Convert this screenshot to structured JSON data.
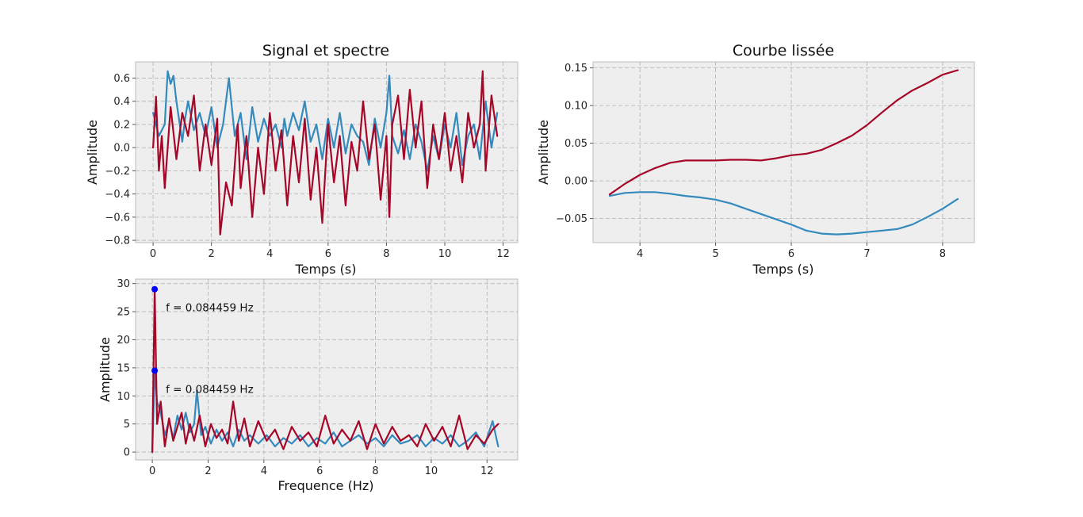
{
  "chart_data": [
    {
      "type": "line",
      "title": "Signal et spectre",
      "xlabel": "Temps (s)",
      "ylabel": "Amplitude",
      "xlim": [
        -0.6,
        12.5
      ],
      "ylim": [
        -0.82,
        0.74
      ],
      "xticks": [
        "0",
        "2",
        "4",
        "6",
        "8",
        "10",
        "12"
      ],
      "yticks": [
        "−0.8",
        "−0.6",
        "−0.4",
        "−0.2",
        "0.0",
        "0.2",
        "0.4",
        "0.6"
      ],
      "grid": true,
      "colors": [
        "#348abd",
        "#a60628"
      ],
      "series": [
        {
          "values_x": [
            0.0,
            0.2,
            0.4,
            0.5,
            0.6,
            0.7,
            0.8,
            1.0,
            1.1,
            1.2,
            1.4,
            1.6,
            1.8,
            2.0,
            2.2,
            2.4,
            2.6,
            2.8,
            3.0,
            3.2,
            3.4,
            3.6,
            3.8,
            4.0,
            4.2,
            4.4,
            4.5,
            4.6,
            4.8,
            5.0,
            5.2,
            5.4,
            5.6,
            5.8,
            6.0,
            6.2,
            6.4,
            6.6,
            6.8,
            7.0,
            7.2,
            7.4,
            7.6,
            7.8,
            8.0,
            8.1,
            8.2,
            8.4,
            8.6,
            8.8,
            9.0,
            9.2,
            9.4,
            9.6,
            9.8,
            10.0,
            10.2,
            10.4,
            10.6,
            10.8,
            11.0,
            11.2,
            11.4,
            11.6,
            11.8
          ],
          "values_y": [
            0.3,
            0.1,
            0.2,
            0.66,
            0.55,
            0.62,
            0.4,
            0.05,
            0.25,
            0.4,
            0.15,
            0.3,
            0.1,
            0.35,
            0.0,
            0.2,
            0.6,
            0.1,
            0.3,
            -0.1,
            0.35,
            0.05,
            0.25,
            0.1,
            0.2,
            0.0,
            0.25,
            0.1,
            0.3,
            0.15,
            0.4,
            0.05,
            0.2,
            -0.1,
            0.25,
            0.0,
            0.3,
            -0.05,
            0.2,
            0.1,
            0.05,
            -0.15,
            0.25,
            0.0,
            0.3,
            0.62,
            0.1,
            -0.05,
            0.15,
            -0.1,
            0.2,
            0.05,
            -0.2,
            0.1,
            -0.1,
            0.2,
            0.0,
            0.3,
            -0.15,
            0.1,
            0.2,
            -0.1,
            0.4,
            0.0,
            0.3
          ]
        },
        {
          "values_x": [
            0.0,
            0.1,
            0.2,
            0.3,
            0.4,
            0.6,
            0.8,
            1.0,
            1.2,
            1.4,
            1.6,
            1.8,
            2.0,
            2.2,
            2.3,
            2.5,
            2.7,
            2.9,
            3.0,
            3.2,
            3.4,
            3.6,
            3.8,
            4.0,
            4.2,
            4.4,
            4.6,
            4.8,
            5.0,
            5.2,
            5.4,
            5.6,
            5.8,
            6.0,
            6.2,
            6.4,
            6.6,
            6.8,
            7.0,
            7.2,
            7.4,
            7.6,
            7.8,
            8.0,
            8.1,
            8.2,
            8.4,
            8.6,
            8.8,
            9.0,
            9.2,
            9.4,
            9.6,
            9.8,
            10.0,
            10.2,
            10.4,
            10.6,
            10.8,
            11.0,
            11.2,
            11.3,
            11.4,
            11.6,
            11.8
          ],
          "values_y": [
            0.0,
            0.44,
            -0.2,
            0.1,
            -0.35,
            0.35,
            -0.1,
            0.3,
            0.1,
            0.45,
            -0.2,
            0.2,
            -0.15,
            0.25,
            -0.75,
            -0.3,
            -0.5,
            0.2,
            -0.35,
            0.1,
            -0.6,
            0.0,
            -0.4,
            0.3,
            -0.2,
            0.15,
            -0.5,
            0.1,
            -0.3,
            0.25,
            -0.45,
            0.0,
            -0.65,
            0.2,
            -0.3,
            0.1,
            -0.5,
            0.05,
            -0.2,
            0.4,
            -0.1,
            0.2,
            -0.45,
            0.1,
            -0.6,
            0.2,
            0.45,
            -0.1,
            0.5,
            0.0,
            0.4,
            -0.35,
            0.2,
            -0.1,
            0.3,
            -0.2,
            0.1,
            -0.3,
            0.3,
            0.0,
            0.2,
            0.66,
            -0.2,
            0.45,
            0.1
          ]
        }
      ]
    },
    {
      "type": "line",
      "title": "Courbe lissée",
      "xlabel": "Temps (s)",
      "ylabel": "Amplitude",
      "xlim": [
        3.38,
        8.42
      ],
      "ylim": [
        -0.082,
        0.158
      ],
      "xticks": [
        "4",
        "5",
        "6",
        "7",
        "8"
      ],
      "yticks": [
        "−0.05",
        "0.00",
        "0.05",
        "0.10",
        "0.15"
      ],
      "grid": true,
      "colors": [
        "#348abd",
        "#a60628"
      ],
      "series": [
        {
          "values_x": [
            3.6,
            3.8,
            4.0,
            4.2,
            4.4,
            4.6,
            4.8,
            5.0,
            5.2,
            5.4,
            5.6,
            5.8,
            6.0,
            6.2,
            6.4,
            6.6,
            6.8,
            7.0,
            7.2,
            7.4,
            7.6,
            7.8,
            8.0,
            8.2
          ],
          "values_y": [
            -0.02,
            -0.016,
            -0.015,
            -0.015,
            -0.017,
            -0.02,
            -0.022,
            -0.025,
            -0.03,
            -0.037,
            -0.044,
            -0.051,
            -0.058,
            -0.066,
            -0.07,
            -0.071,
            -0.07,
            -0.068,
            -0.066,
            -0.064,
            -0.058,
            -0.048,
            -0.037,
            -0.024
          ]
        },
        {
          "values_x": [
            3.6,
            3.8,
            4.0,
            4.2,
            4.4,
            4.6,
            4.8,
            5.0,
            5.2,
            5.4,
            5.6,
            5.8,
            6.0,
            6.2,
            6.4,
            6.6,
            6.8,
            7.0,
            7.2,
            7.4,
            7.6,
            7.8,
            8.0,
            8.2
          ],
          "values_y": [
            -0.018,
            -0.004,
            0.008,
            0.017,
            0.024,
            0.027,
            0.027,
            0.027,
            0.028,
            0.028,
            0.027,
            0.03,
            0.034,
            0.036,
            0.041,
            0.05,
            0.06,
            0.074,
            0.091,
            0.107,
            0.12,
            0.13,
            0.141,
            0.147
          ]
        }
      ]
    },
    {
      "type": "line",
      "xlabel": "Frequence (Hz)",
      "ylabel": "Amplitude",
      "xlim": [
        -0.6,
        13.1
      ],
      "ylim": [
        -1.4,
        30.8
      ],
      "xticks": [
        "0",
        "2",
        "4",
        "6",
        "8",
        "10",
        "12"
      ],
      "yticks": [
        "0",
        "5",
        "10",
        "15",
        "20",
        "25",
        "30"
      ],
      "grid": true,
      "colors": [
        "#348abd",
        "#a60628"
      ],
      "peak_marker_color": "#0000ff",
      "peaks": [
        {
          "x": 0.084459,
          "y": 29,
          "label": "f = 0.084459 Hz"
        },
        {
          "x": 0.084459,
          "y": 14.5,
          "label": "f = 0.084459 Hz"
        }
      ],
      "series": [
        {
          "values_x": [
            0.0,
            0.084,
            0.17,
            0.3,
            0.45,
            0.6,
            0.75,
            0.9,
            1.05,
            1.2,
            1.35,
            1.5,
            1.6,
            1.75,
            1.9,
            2.1,
            2.3,
            2.5,
            2.7,
            2.9,
            3.1,
            3.3,
            3.5,
            3.8,
            4.1,
            4.4,
            4.7,
            5.0,
            5.3,
            5.6,
            5.9,
            6.2,
            6.5,
            6.8,
            7.1,
            7.4,
            7.7,
            8.0,
            8.3,
            8.6,
            8.9,
            9.2,
            9.5,
            9.8,
            10.1,
            10.4,
            10.7,
            11.0,
            11.3,
            11.6,
            11.9,
            12.2,
            12.4
          ],
          "values_y": [
            0.0,
            14.5,
            9.0,
            7.0,
            3.0,
            5.5,
            2.5,
            6.5,
            4.0,
            7.0,
            3.5,
            5.0,
            11.0,
            3.0,
            4.5,
            1.5,
            4.0,
            2.0,
            3.5,
            1.0,
            4.0,
            2.0,
            3.0,
            1.5,
            3.0,
            1.0,
            2.5,
            1.5,
            3.0,
            1.0,
            2.5,
            1.5,
            3.5,
            1.0,
            2.0,
            3.0,
            1.5,
            2.5,
            1.0,
            3.0,
            1.5,
            2.0,
            3.0,
            1.0,
            2.5,
            1.5,
            3.0,
            1.0,
            2.0,
            3.5,
            1.0,
            5.5,
            1.0
          ]
        },
        {
          "values_x": [
            0.0,
            0.084,
            0.17,
            0.3,
            0.45,
            0.6,
            0.75,
            0.9,
            1.05,
            1.2,
            1.35,
            1.5,
            1.7,
            1.9,
            2.1,
            2.3,
            2.5,
            2.7,
            2.9,
            3.1,
            3.3,
            3.5,
            3.8,
            4.1,
            4.4,
            4.7,
            5.0,
            5.3,
            5.6,
            5.9,
            6.2,
            6.5,
            6.8,
            7.1,
            7.4,
            7.7,
            8.0,
            8.3,
            8.6,
            8.9,
            9.2,
            9.5,
            9.8,
            10.1,
            10.4,
            10.7,
            11.0,
            11.3,
            11.6,
            11.9,
            12.2,
            12.4
          ],
          "values_y": [
            0.0,
            29.0,
            5.0,
            9.0,
            1.0,
            6.0,
            2.0,
            4.5,
            7.0,
            1.5,
            5.0,
            2.0,
            6.5,
            1.0,
            5.0,
            2.5,
            4.0,
            1.5,
            9.0,
            2.0,
            6.0,
            1.0,
            5.5,
            2.0,
            4.0,
            0.5,
            4.5,
            2.0,
            3.5,
            1.0,
            6.5,
            1.5,
            4.0,
            2.0,
            5.5,
            0.5,
            5.0,
            1.5,
            4.5,
            2.0,
            3.0,
            1.0,
            5.0,
            2.0,
            4.5,
            1.0,
            6.5,
            0.5,
            3.0,
            1.5,
            4.0,
            5.0
          ]
        }
      ]
    }
  ]
}
